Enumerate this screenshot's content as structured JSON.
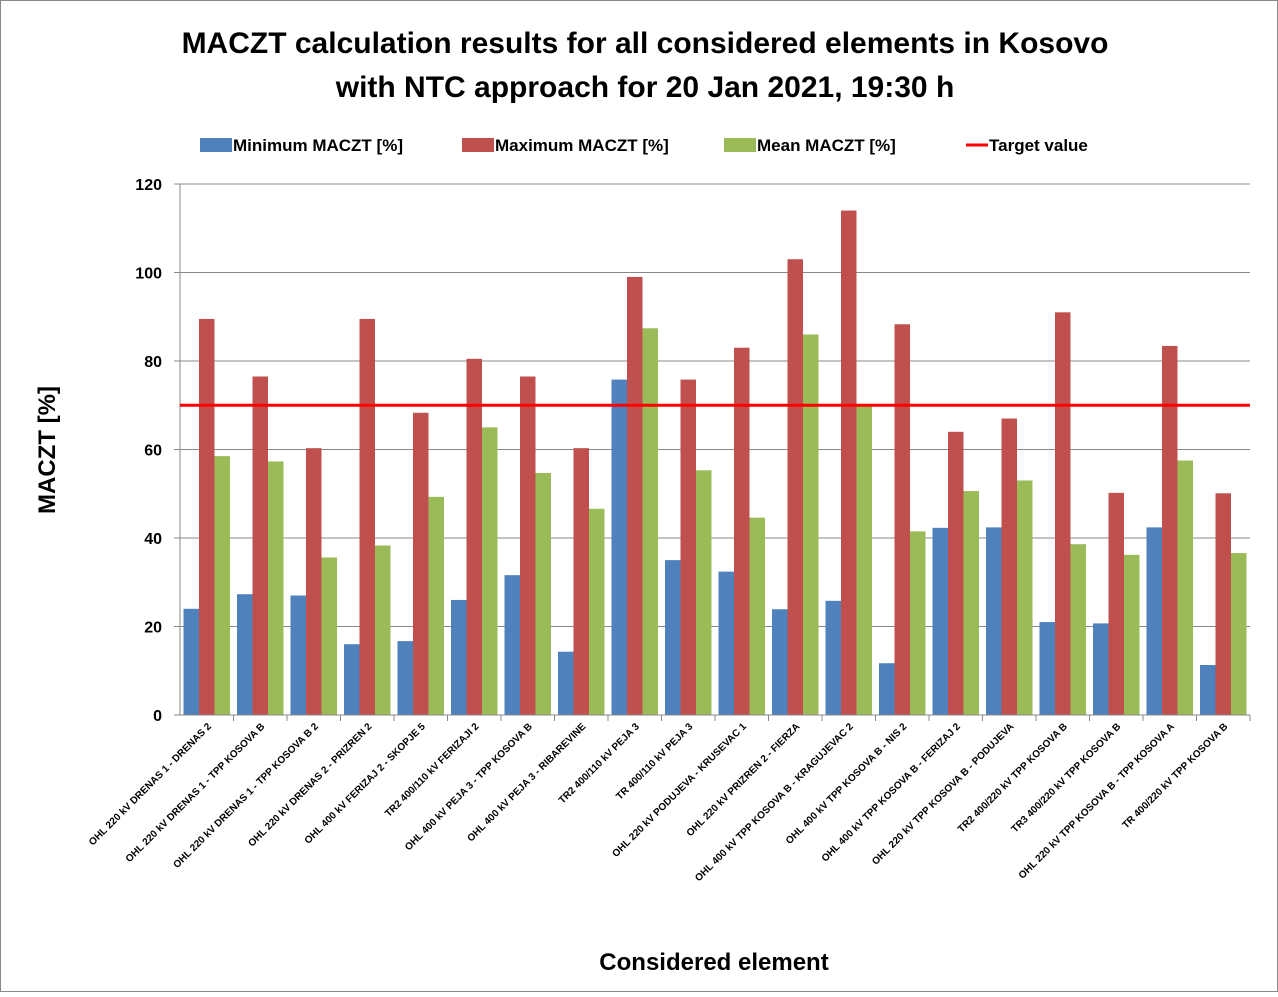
{
  "chart_data": {
    "type": "bar",
    "title_lines": [
      "MACZT calculation results for all considered elements in Kosovo",
      "with NTC approach for 20 Jan 2021, 19:30 h"
    ],
    "x_label": "Considered element",
    "y_label": "MACZT [%]",
    "categories": [
      "OHL 220 kV DRENAS 1 - DRENAS 2",
      "OHL 220 kV DRENAS 1 - TPP KOSOVA B",
      "OHL 220 kV DRENAS 1 - TPP KOSOVA B 2",
      "OHL 220 kV DRENAS 2 - PRIZREN 2",
      "OHL 400 kV FERIZAJ 2 - SKOPJE 5",
      "TR2 400/110 kV FERIZAJI 2",
      "OHL 400 kV PEJA 3 - TPP KOSOVA B",
      "OHL 400 kV PEJA 3 - RIBAREVINE",
      "TR2 400/110 kV PEJA 3",
      "TR 400/110 kV PEJA 3",
      "OHL 220 kV PODUJEVA - KRUSEVAC 1",
      "OHL 220 kV PRIZREN 2 - FIERZA",
      "OHL 400 kV TPP KOSOVA B - KRAGUJEVAC 2",
      "OHL 400 kV TPP KOSOVA B - NIS 2",
      "OHL 400 kV TPP KOSOVA B - FERIZAJ 2",
      "OHL 220 kV TPP KOSOVA B - PODUJEVA",
      "TR2 400/220 kV TPP KOSOVA B",
      "TR3 400/220 kV TPP KOSOVA B",
      "OHL 220 kV TPP KOSOVA B - TPP KOSOVA A",
      "TR 400/220 kV TPP KOSOVA B"
    ],
    "series": [
      {
        "name": "Minimum MACZT [%]",
        "color": "#4f81bd",
        "values": [
          24,
          27.3,
          27,
          16,
          16.7,
          26,
          31.6,
          14.3,
          75.8,
          35,
          32.4,
          23.9,
          25.8,
          11.7,
          42.3,
          42.4,
          21,
          20.7,
          42.4,
          11.3
        ]
      },
      {
        "name": "Maximum MACZT [%]",
        "color": "#c0504d",
        "values": [
          89.5,
          76.5,
          60.3,
          89.5,
          68.3,
          80.5,
          76.5,
          60.3,
          99,
          75.8,
          83,
          103,
          114,
          88.3,
          64,
          67,
          91,
          50.2,
          83.4,
          50.1
        ]
      },
      {
        "name": "Mean MACZT [%]",
        "color": "#9bbb59",
        "values": [
          58.5,
          57.3,
          35.6,
          38.3,
          49.3,
          65,
          54.7,
          46.6,
          87.4,
          55.3,
          44.6,
          86,
          70,
          41.5,
          50.6,
          53,
          38.6,
          36.2,
          57.5,
          36.6
        ]
      }
    ],
    "target": {
      "name": "Target value",
      "value": 70,
      "color": "#ff0000"
    },
    "ylim": [
      0,
      120
    ],
    "yticks": [
      0,
      20,
      40,
      60,
      80,
      100,
      120
    ],
    "grid": true
  }
}
